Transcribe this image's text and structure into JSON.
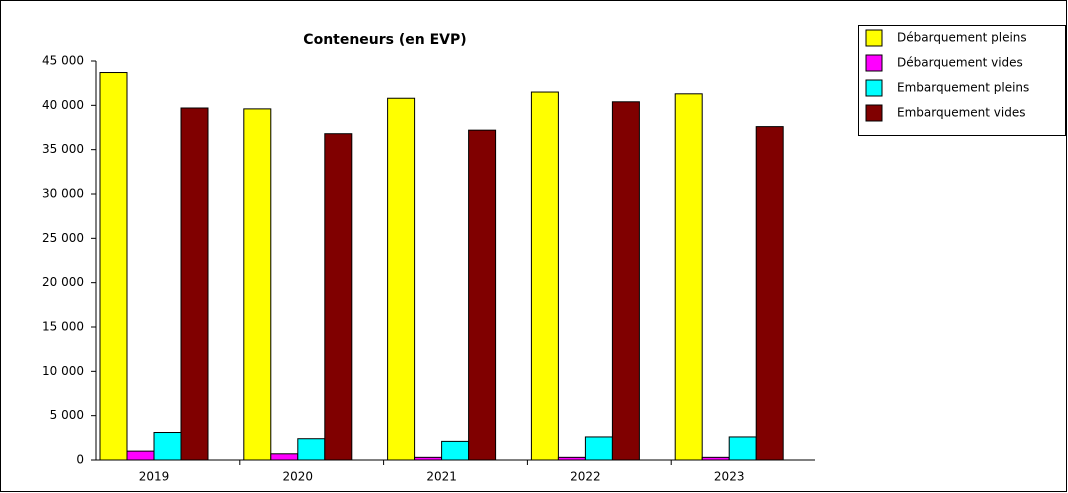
{
  "chart_data": {
    "type": "bar",
    "title": "Conteneurs   (en   EVP)",
    "categories": [
      "2019",
      "2020",
      "2021",
      "2022",
      "2023"
    ],
    "series": [
      {
        "name": "Débarquement pleins",
        "color": "#ffff00",
        "values": [
          43700,
          39600,
          40800,
          41500,
          41300
        ]
      },
      {
        "name": "Débarquement vides",
        "color": "#ff00ff",
        "values": [
          1000,
          700,
          300,
          300,
          300
        ]
      },
      {
        "name": "Embarquement pleins",
        "color": "#00ffff",
        "values": [
          3100,
          2400,
          2100,
          2600,
          2600
        ]
      },
      {
        "name": "Embarquement vides",
        "color": "#800000",
        "values": [
          39700,
          36800,
          37200,
          40400,
          37600
        ]
      }
    ],
    "ylim": [
      0,
      45000
    ],
    "yticks": [
      0,
      {
        "value": 5000,
        "label": "5 000"
      },
      {
        "value": 10000,
        "label": "10 000"
      },
      {
        "value": 15000,
        "label": "15 000"
      },
      {
        "value": 20000,
        "label": "20 000"
      },
      {
        "value": 25000,
        "label": "25 000"
      },
      {
        "value": 30000,
        "label": "30 000"
      },
      {
        "value": 35000,
        "label": "35 000"
      },
      {
        "value": 40000,
        "label": "40 000"
      },
      {
        "value": 45000,
        "label": "45 000"
      }
    ],
    "legend": "top-right"
  }
}
